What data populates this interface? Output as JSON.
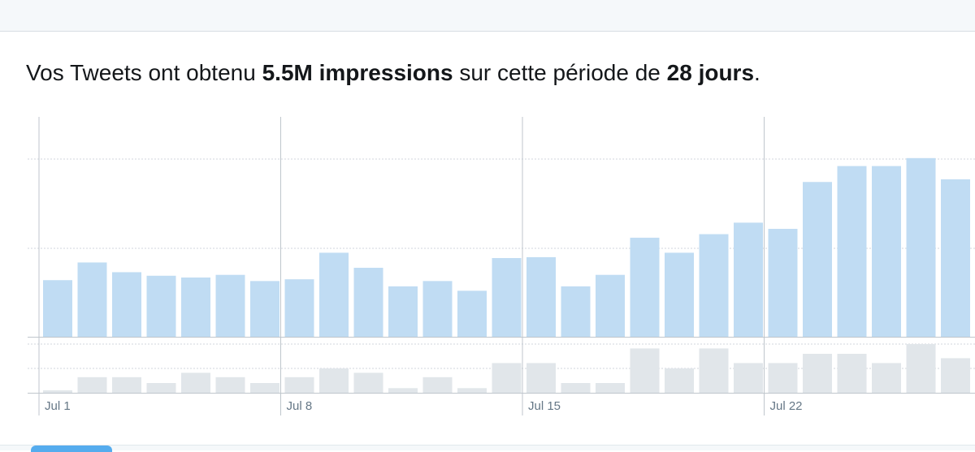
{
  "summary": {
    "prefix": "Vos Tweets ont obtenu",
    "impressions": "5.5M impressions",
    "middle": "sur cette période de",
    "period": "28 jours",
    "suffix": "."
  },
  "colors": {
    "impressions_bar": "#c0dcf3",
    "engagement_bar": "#e1e6ea",
    "grid": "#d0d6dc",
    "axis": "#bfc6cc",
    "tick_text": "#657786"
  },
  "chart_data": {
    "type": "bar",
    "title": "",
    "xlabel": "",
    "ylabel": "",
    "x_tick_labels": [
      "Jul 1",
      "Jul 8",
      "Jul 15",
      "Jul 22"
    ],
    "x_tick_indices": [
      0,
      7,
      14,
      21
    ],
    "series": [
      {
        "values": [
          0.32,
          0.42,
          0.365,
          0.345,
          0.335,
          0.35,
          0.315,
          0.325,
          0.475,
          0.39,
          0.285,
          0.315,
          0.26,
          0.445,
          0.45,
          0.285,
          0.35,
          0.56,
          0.475,
          0.58,
          0.645,
          0.61,
          0.875,
          0.965,
          0.965,
          1.01,
          0.89,
          0.89
        ]
      },
      {
        "values": [
          0.05,
          0.32,
          0.32,
          0.2,
          0.41,
          0.32,
          0.2,
          0.32,
          0.5,
          0.41,
          0.095,
          0.32,
          0.095,
          0.61,
          0.61,
          0.2,
          0.2,
          0.91,
          0.5,
          0.91,
          0.61,
          0.61,
          0.8,
          0.8,
          0.61,
          1.0,
          0.71,
          0.71
        ]
      }
    ],
    "grid": true,
    "legend": "none"
  }
}
